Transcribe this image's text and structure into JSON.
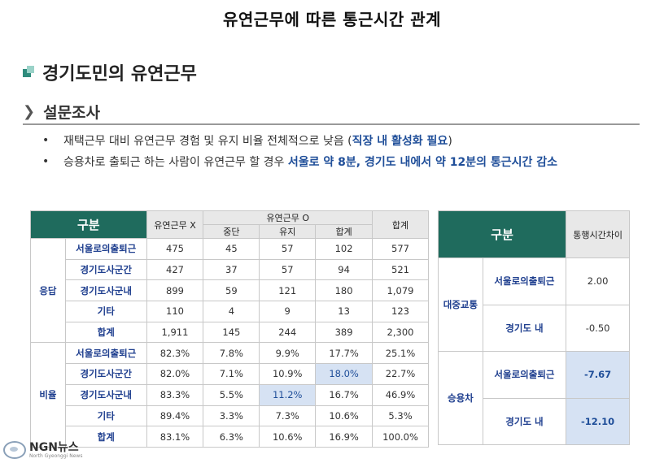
{
  "page_title": "유연근무에 따른 통근시간 관계",
  "section_title": "경기도민의 유연근무",
  "sub_title": "설문조사",
  "bullets": [
    {
      "text": "재택근무 대비 유연근무 경험 및 유지 비율 전체적으로 낮음 (",
      "highlight": "직장 내 활성화 필요",
      "after": ")"
    },
    {
      "text": "승용차로 출퇴근 하는 사람이 유연근무 할 경우 ",
      "highlight": "서울로 약 8분, 경기도 내에서 약 12분의 통근시간 감소",
      "after": ""
    }
  ],
  "table1": {
    "header_category": "구분",
    "header_no": "유연근무 X",
    "header_yes": "유연근무 O",
    "header_stop": "중단",
    "header_keep": "유지",
    "header_sum_o": "합계",
    "header_total": "합계",
    "groups": [
      {
        "name": "응답",
        "rows": [
          {
            "label": "서울로의출퇴근",
            "values": [
              "475",
              "45",
              "57",
              "102",
              "577"
            ]
          },
          {
            "label": "경기도사군간",
            "values": [
              "427",
              "37",
              "57",
              "94",
              "521"
            ]
          },
          {
            "label": "경기도사군내",
            "values": [
              "899",
              "59",
              "121",
              "180",
              "1,079"
            ]
          },
          {
            "label": "기타",
            "values": [
              "110",
              "4",
              "9",
              "13",
              "123"
            ]
          },
          {
            "label": "합계",
            "values": [
              "1,911",
              "145",
              "244",
              "389",
              "2,300"
            ]
          }
        ]
      },
      {
        "name": "비율",
        "rows": [
          {
            "label": "서울로의출퇴근",
            "values": [
              "82.3%",
              "7.8%",
              "9.9%",
              "17.7%",
              "25.1%"
            ]
          },
          {
            "label": "경기도사군간",
            "values": [
              "82.0%",
              "7.1%",
              "10.9%",
              "18.0%",
              "22.7%"
            ]
          },
          {
            "label": "경기도사군내",
            "values": [
              "83.3%",
              "5.5%",
              "11.2%",
              "16.7%",
              "46.9%"
            ]
          },
          {
            "label": "기타",
            "values": [
              "89.4%",
              "3.3%",
              "7.3%",
              "10.6%",
              "5.3%"
            ]
          },
          {
            "label": "합계",
            "values": [
              "83.1%",
              "6.3%",
              "10.6%",
              "16.9%",
              "100.0%"
            ]
          }
        ]
      }
    ]
  },
  "table2": {
    "header_category": "구분",
    "header_diff": "통행시간차이",
    "groups": [
      {
        "name": "대중교통",
        "rows": [
          {
            "label": "서울로의출퇴근",
            "value": "2.00"
          },
          {
            "label": "경기도 내",
            "value": "-0.50"
          }
        ]
      },
      {
        "name": "승용차",
        "rows": [
          {
            "label": "서울로의출퇴근",
            "value": "-7.67"
          },
          {
            "label": "경기도 내",
            "value": "-12.10"
          }
        ]
      }
    ]
  },
  "logo": {
    "name": "NGN뉴스",
    "sub": "North Gyeonggi News"
  }
}
